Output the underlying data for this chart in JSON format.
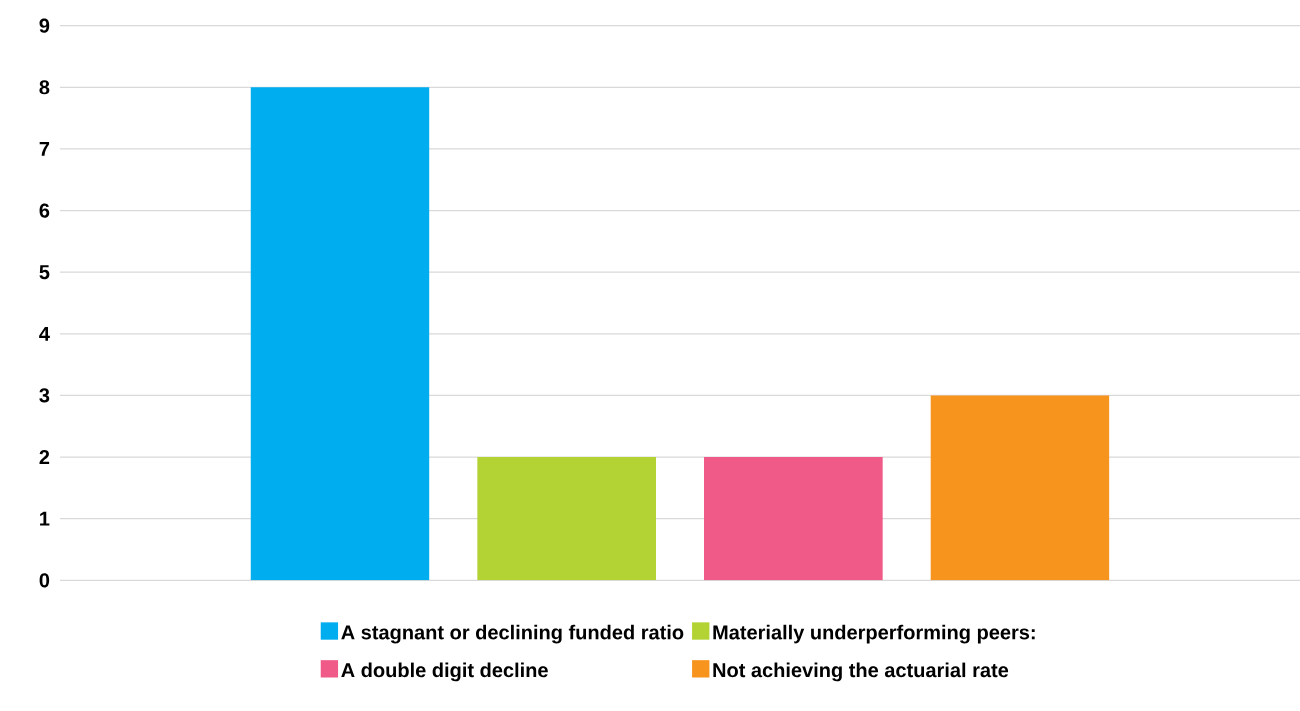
{
  "chart_data": {
    "type": "bar",
    "categories": [
      null
    ],
    "series": [
      {
        "name": "A stagnant or declining funded ratio",
        "color": "#00adef",
        "values": [
          8
        ]
      },
      {
        "name": "Materially underperforming peers:",
        "color": "#b3d335",
        "values": [
          2
        ]
      },
      {
        "name": "A double digit decline",
        "color": "#f05a88",
        "values": [
          2
        ]
      },
      {
        "name": "Not achieving the actuarial rate",
        "color": "#f7941d",
        "values": [
          3
        ]
      }
    ],
    "ylim": [
      0,
      9
    ],
    "yticks": [
      0,
      1,
      2,
      3,
      4,
      5,
      6,
      7,
      8,
      9
    ],
    "grid": "y",
    "legend": "bottom"
  }
}
